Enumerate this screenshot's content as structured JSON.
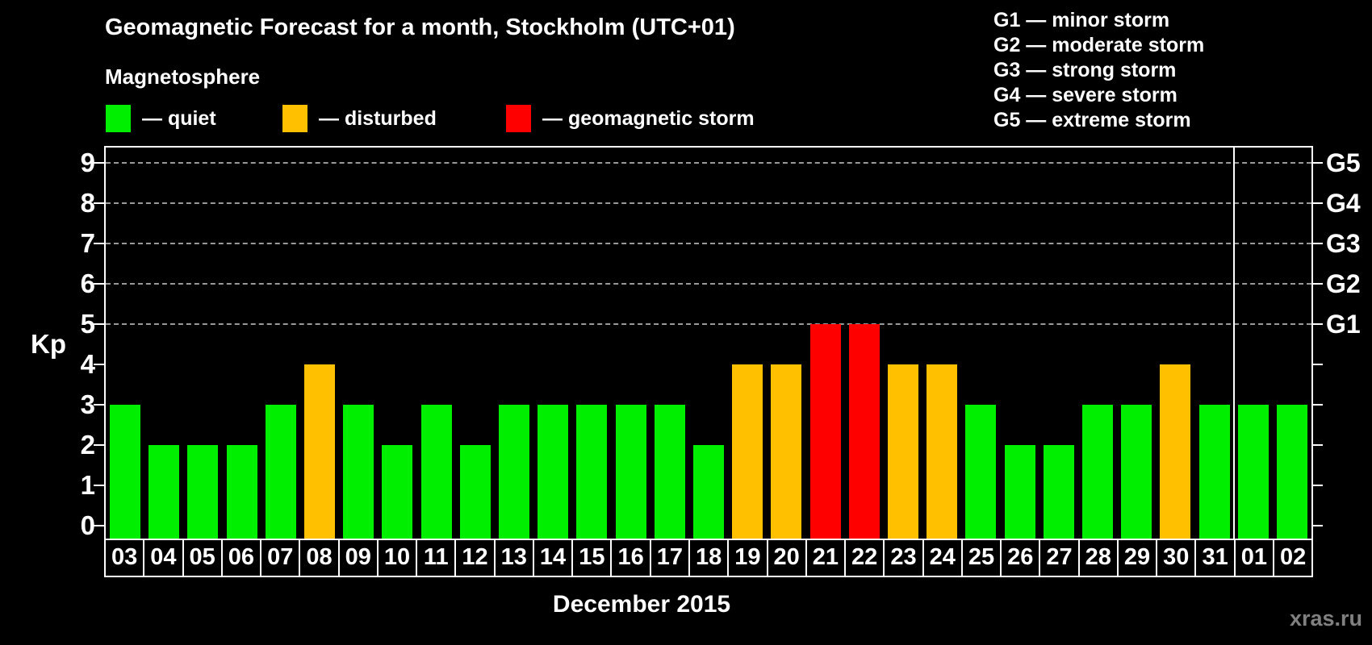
{
  "header": {
    "title": "Geomagnetic Forecast for a month, Stockholm (UTC+01)",
    "subtitle": "Magnetosphere"
  },
  "legend": {
    "items": [
      {
        "name": "quiet",
        "label": "— quiet",
        "color": "#00ee00",
        "x": 131
      },
      {
        "name": "disturbed",
        "label": "— disturbed",
        "color": "#ffc000",
        "x": 350
      },
      {
        "name": "geomagnetic-storm",
        "label": "— geomagnetic storm",
        "color": "#ff0000",
        "x": 627
      }
    ]
  },
  "storm_scale": {
    "lines": [
      "G1 — minor storm",
      "G2 — moderate storm",
      "G3 — strong storm",
      "G4 — severe storm",
      "G5 — extreme storm"
    ]
  },
  "chart_data": {
    "type": "bar",
    "title": "Geomagnetic Forecast for a month, Stockholm (UTC+01)",
    "xlabel": "December 2015",
    "ylabel": "Kp",
    "ylim": [
      0,
      9.4
    ],
    "grid": "dashed horizontal at Kp 5-9",
    "legend_position": "top-left",
    "categories": [
      "03",
      "04",
      "05",
      "06",
      "07",
      "08",
      "09",
      "10",
      "11",
      "12",
      "13",
      "14",
      "15",
      "16",
      "17",
      "18",
      "19",
      "20",
      "21",
      "22",
      "23",
      "24",
      "25",
      "26",
      "27",
      "28",
      "29",
      "30",
      "31",
      "01",
      "02"
    ],
    "values": [
      3,
      2,
      2,
      2,
      3,
      4,
      3,
      2,
      3,
      2,
      3,
      3,
      3,
      3,
      3,
      2,
      4,
      4,
      5,
      5,
      4,
      4,
      3,
      2,
      2,
      3,
      3,
      4,
      3,
      3,
      3
    ],
    "statuses": [
      "quiet",
      "quiet",
      "quiet",
      "quiet",
      "quiet",
      "disturbed",
      "quiet",
      "quiet",
      "quiet",
      "quiet",
      "quiet",
      "quiet",
      "quiet",
      "quiet",
      "quiet",
      "quiet",
      "disturbed",
      "disturbed",
      "storm",
      "storm",
      "disturbed",
      "disturbed",
      "quiet",
      "quiet",
      "quiet",
      "quiet",
      "quiet",
      "disturbed",
      "quiet",
      "quiet",
      "quiet"
    ],
    "status_colors": {
      "quiet": "#00ee00",
      "disturbed": "#ffc000",
      "storm": "#ff0000"
    },
    "y_ticks": [
      0,
      1,
      2,
      3,
      4,
      5,
      6,
      7,
      8,
      9
    ],
    "gridline_levels": [
      5,
      6,
      7,
      8,
      9
    ],
    "right_axis": [
      {
        "level": 5,
        "label": "G1"
      },
      {
        "level": 6,
        "label": "G2"
      },
      {
        "level": 7,
        "label": "G3"
      },
      {
        "level": 8,
        "label": "G4"
      },
      {
        "level": 9,
        "label": "G5"
      }
    ],
    "month_separator_after_index": 28
  },
  "footer": {
    "x_axis_title": "December 2015",
    "watermark": "xras.ru"
  }
}
